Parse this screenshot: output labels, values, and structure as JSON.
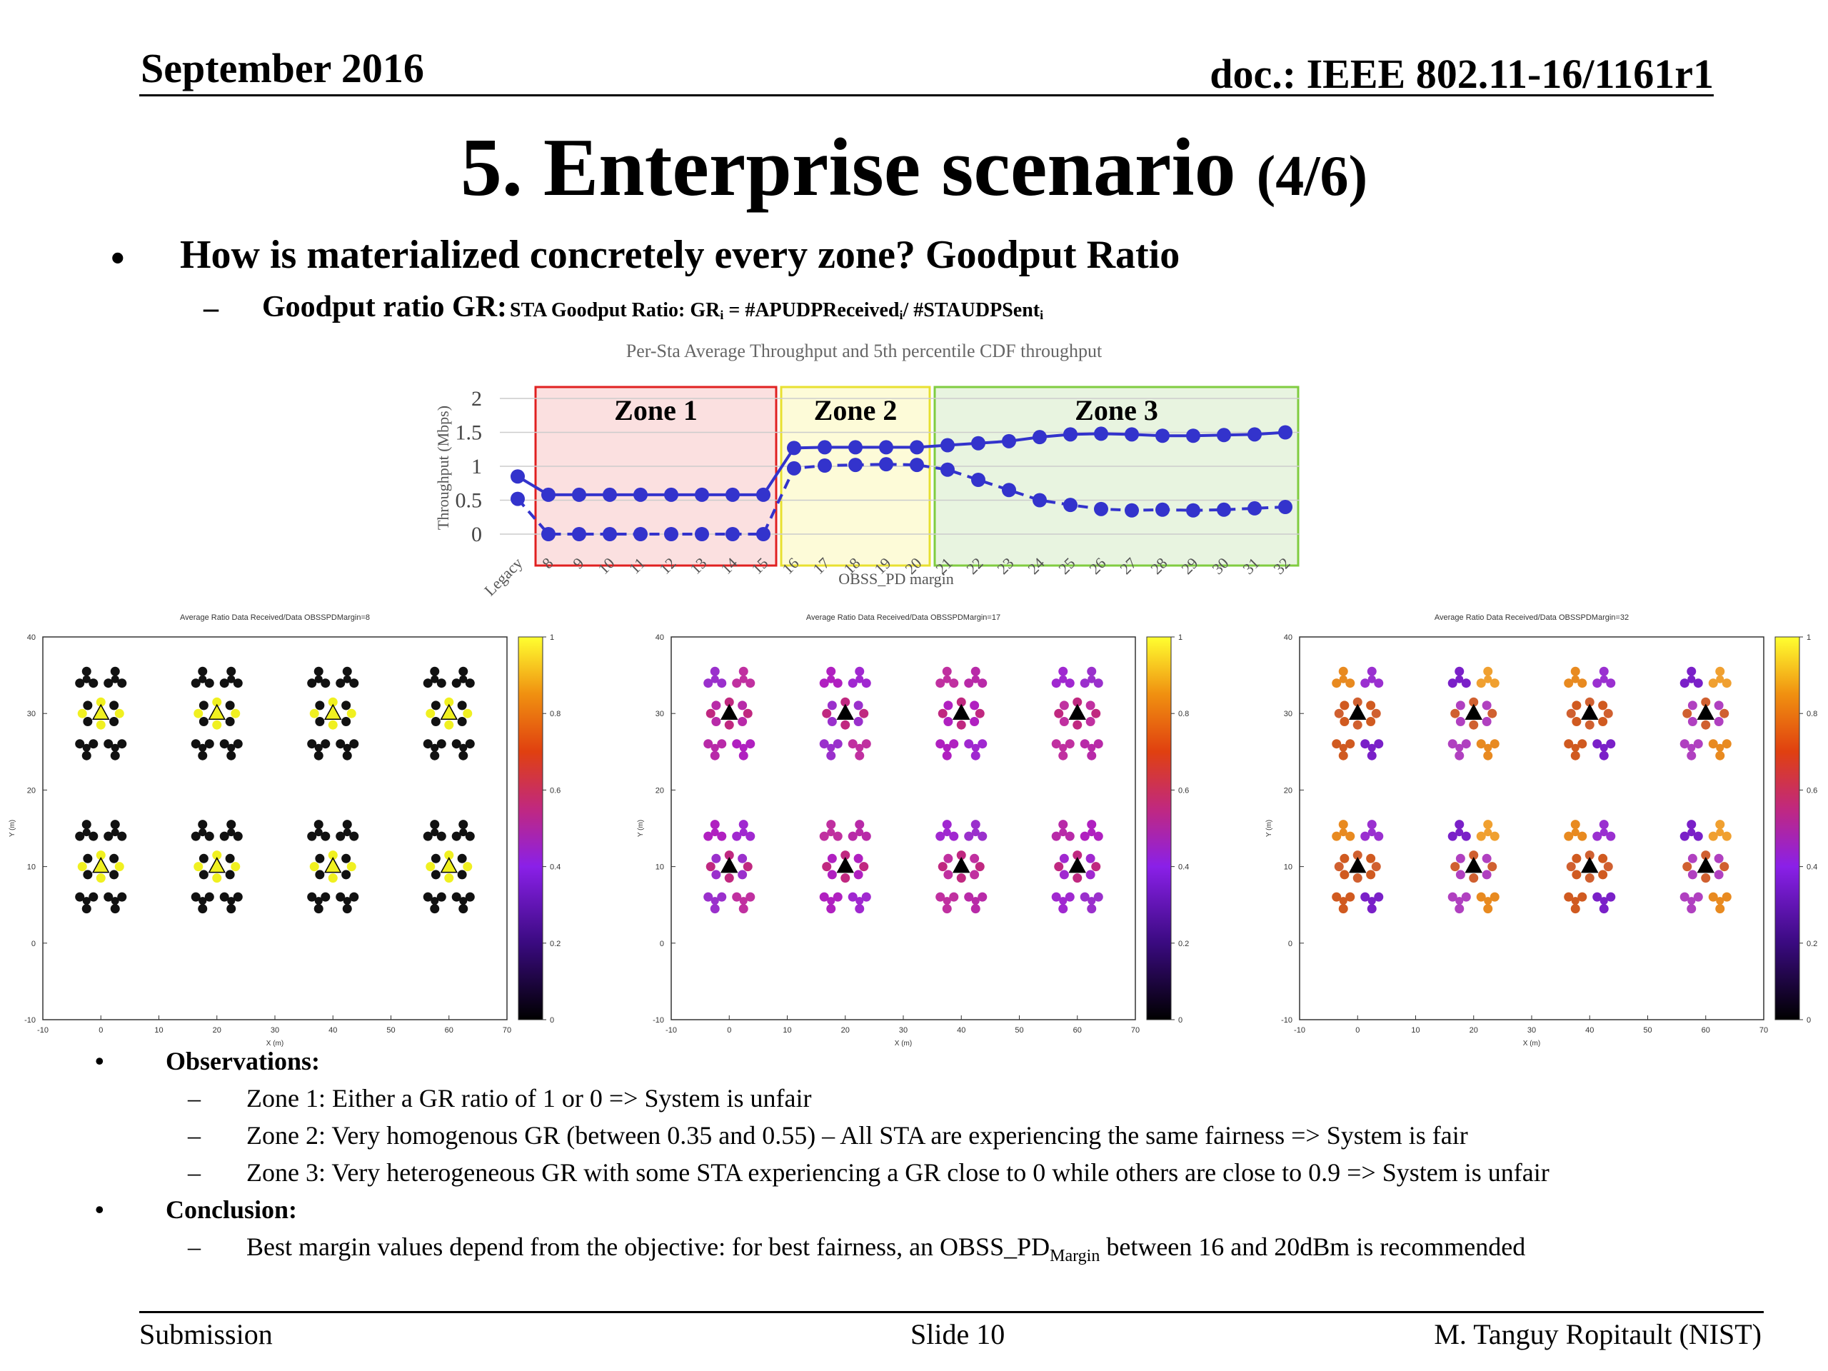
{
  "header": {
    "date": "September 2016",
    "doc": "doc.: IEEE 802.11-16/1161r1"
  },
  "title": {
    "main": "5. Enterprise scenario",
    "part": "(4/6)"
  },
  "bullet1": "How is materialized concretely every zone?  Goodput Ratio",
  "bullet1_sub": {
    "label": "Goodput ratio GR:",
    "formula_a": "STA Goodput Ratio: GR",
    "sub_i": "i",
    "formula_b": " = #APUDPReceived",
    "formula_c": "/ #STAUDPSent"
  },
  "chart_data": [
    {
      "type": "line",
      "title": "Per-Sta Average Throughput and 5th percentile CDF throughput",
      "xlabel": "OBSS_PD margin",
      "ylabel": "Throughput (Mbps)",
      "ylim": [
        0,
        2
      ],
      "yticks": [
        "0",
        "0.5",
        "1",
        "1.5",
        "2"
      ],
      "categories": [
        "Legacy",
        "8",
        "9",
        "10",
        "11",
        "12",
        "13",
        "14",
        "15",
        "16",
        "17",
        "18",
        "19",
        "20",
        "21",
        "22",
        "23",
        "24",
        "25",
        "26",
        "27",
        "28",
        "29",
        "30",
        "31",
        "32"
      ],
      "series": [
        {
          "style": "solid",
          "color": "#3333cc",
          "values": [
            0.85,
            0.58,
            0.58,
            0.58,
            0.58,
            0.58,
            0.58,
            0.58,
            0.58,
            1.27,
            1.28,
            1.28,
            1.28,
            1.28,
            1.31,
            1.34,
            1.37,
            1.43,
            1.47,
            1.48,
            1.47,
            1.45,
            1.45,
            1.46,
            1.47,
            1.5
          ]
        },
        {
          "style": "dashed",
          "color": "#3333cc",
          "values": [
            0.52,
            0.0,
            0.0,
            0.0,
            0.0,
            0.0,
            0.0,
            0.0,
            0.0,
            0.97,
            1.01,
            1.02,
            1.03,
            1.02,
            0.95,
            0.8,
            0.65,
            0.5,
            0.43,
            0.37,
            0.35,
            0.36,
            0.35,
            0.36,
            0.38,
            0.4
          ]
        }
      ],
      "zones": [
        {
          "label": "Zone 1",
          "from": "8",
          "to": "15",
          "fill": "#fbe0e0",
          "stroke": "#e02020"
        },
        {
          "label": "Zone 2",
          "from": "16",
          "to": "20",
          "fill": "#fdfbd8",
          "stroke": "#e8e030"
        },
        {
          "label": "Zone 3",
          "from": "21",
          "to": "32",
          "fill": "#e8f4e0",
          "stroke": "#80cc40"
        }
      ]
    },
    {
      "type": "heatmap",
      "title": "Average Ratio Data Received/Data OBSSPDMargin=8",
      "xlabel": "X (m)",
      "ylabel": "Y (m)",
      "xticks": [
        "-10",
        "0",
        "10",
        "20",
        "30",
        "40",
        "50",
        "60",
        "70"
      ],
      "yticks": [
        "-10",
        "0",
        "10",
        "20",
        "30",
        "40"
      ],
      "colorbar_ticks": [
        "0",
        "0.2",
        "0.4",
        "0.6",
        "0.8",
        "1"
      ],
      "ap_x": [
        0,
        20,
        40,
        60
      ],
      "ap_y": [
        10,
        30
      ],
      "palette": "zone1"
    },
    {
      "type": "heatmap",
      "title": "Average Ratio Data Received/Data OBSSPDMargin=17",
      "xlabel": "X (m)",
      "ylabel": "Y (m)",
      "xticks": [
        "-10",
        "0",
        "10",
        "20",
        "30",
        "40",
        "50",
        "60",
        "70"
      ],
      "yticks": [
        "-10",
        "0",
        "10",
        "20",
        "30",
        "40"
      ],
      "colorbar_ticks": [
        "0",
        "0.2",
        "0.4",
        "0.6",
        "0.8",
        "1"
      ],
      "ap_x": [
        0,
        20,
        40,
        60
      ],
      "ap_y": [
        10,
        30
      ],
      "palette": "zone2"
    },
    {
      "type": "heatmap",
      "title": "Average Ratio Data Received/Data OBSSPDMargin=32",
      "xlabel": "X (m)",
      "ylabel": "Y (m)",
      "xticks": [
        "-10",
        "0",
        "10",
        "20",
        "30",
        "40",
        "50",
        "60",
        "70"
      ],
      "yticks": [
        "-10",
        "0",
        "10",
        "20",
        "30",
        "40"
      ],
      "colorbar_ticks": [
        "0",
        "0.2",
        "0.4",
        "0.6",
        "0.8",
        "1"
      ],
      "ap_x": [
        0,
        20,
        40,
        60
      ],
      "ap_y": [
        10,
        30
      ],
      "palette": "zone3"
    }
  ],
  "observations": {
    "heading": "Observations:",
    "items": [
      "Zone 1: Either a GR ratio of 1 or 0 => System is unfair",
      "Zone 2: Very homogenous GR (between 0.35 and 0.55) – All STA are experiencing the same fairness => System is fair",
      "Zone 3: Very heterogeneous GR with some STA experiencing a GR close to 0 while others are close to 0.9 => System is unfair"
    ]
  },
  "conclusion": {
    "heading": "Conclusion:",
    "text_a": "Best margin values depend from the objective: for best fairness, an OBSS_PD",
    "text_sub": "Margin",
    "text_b": " between 16 and 20dBm is recommended"
  },
  "footer": {
    "left": "Submission",
    "center": "Slide 10",
    "right": "M. Tanguy Ropitault (NIST)"
  }
}
